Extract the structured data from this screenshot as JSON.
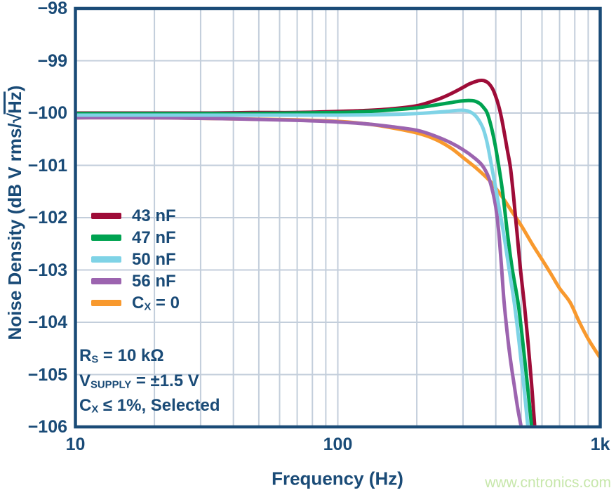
{
  "style": {
    "background": "#ffffff",
    "axis_color": "#1a4b77",
    "grid_color": "#c3cedb",
    "border_color": "#1a4b77",
    "watermark_color": "#c7e7ab"
  },
  "watermark": {
    "text": "www.cntronics.com"
  },
  "chart_data": {
    "type": "line",
    "title": "",
    "xlabel": "Frequency (Hz)",
    "ylabel_text": "Noise Density (dB V rms/√Hz)",
    "ylabel_segments": [
      {
        "t": "Noise Density (dB V rms/"
      },
      {
        "t": "√"
      },
      {
        "t": "Hz",
        "overline": true
      },
      {
        "t": ")"
      }
    ],
    "x_scale": "log",
    "xlim": [
      10,
      1000
    ],
    "ylim": [
      -106,
      -98
    ],
    "grid": true,
    "legend_position": "inside-left",
    "x_ticks": [
      {
        "value": 10,
        "label": "10"
      },
      {
        "value": 100,
        "label": "100"
      },
      {
        "value": 1000,
        "label": "1k"
      }
    ],
    "y_ticks": [
      {
        "value": -98,
        "label": "−98"
      },
      {
        "value": -99,
        "label": "−99"
      },
      {
        "value": -100,
        "label": "−100"
      },
      {
        "value": -101,
        "label": "−101"
      },
      {
        "value": -102,
        "label": "−102"
      },
      {
        "value": -103,
        "label": "−103"
      },
      {
        "value": -104,
        "label": "−104"
      },
      {
        "value": -105,
        "label": "−105"
      },
      {
        "value": -106,
        "label": "−106"
      }
    ],
    "x_gridlines": [
      20,
      30,
      40,
      50,
      60,
      70,
      80,
      90,
      100,
      200,
      300,
      400,
      500,
      600,
      700,
      800,
      900
    ],
    "y_gridlines": [
      -99,
      -100,
      -101,
      -102,
      -103,
      -104,
      -105
    ],
    "draw_order": [
      4,
      3,
      0,
      1,
      2
    ],
    "series": [
      {
        "name": "43 nF",
        "label_segments": [
          {
            "t": "43 nF"
          }
        ],
        "color": "#9e0c38",
        "points": [
          [
            10,
            -100
          ],
          [
            15,
            -100
          ],
          [
            22,
            -100
          ],
          [
            33,
            -100
          ],
          [
            47,
            -99.99
          ],
          [
            68,
            -99.99
          ],
          [
            100,
            -99.97
          ],
          [
            130,
            -99.95
          ],
          [
            160,
            -99.92
          ],
          [
            200,
            -99.86
          ],
          [
            240,
            -99.74
          ],
          [
            270,
            -99.63
          ],
          [
            300,
            -99.51
          ],
          [
            315,
            -99.45
          ],
          [
            330,
            -99.41
          ],
          [
            345,
            -99.38
          ],
          [
            360,
            -99.38
          ],
          [
            375,
            -99.43
          ],
          [
            390,
            -99.55
          ],
          [
            402,
            -99.72
          ],
          [
            412,
            -99.9
          ],
          [
            420,
            -100.08
          ],
          [
            430,
            -100.35
          ],
          [
            443,
            -100.72
          ],
          [
            455,
            -101.05
          ],
          [
            468,
            -101.62
          ],
          [
            482,
            -102.3
          ],
          [
            497,
            -103
          ],
          [
            513,
            -103.62
          ],
          [
            530,
            -104.35
          ],
          [
            547,
            -105.15
          ],
          [
            563,
            -106
          ]
        ]
      },
      {
        "name": "47 nF",
        "label_segments": [
          {
            "t": "47 nF"
          }
        ],
        "color": "#00a351",
        "points": [
          [
            10,
            -100.01
          ],
          [
            15,
            -100.01
          ],
          [
            22,
            -100.01
          ],
          [
            33,
            -100.01
          ],
          [
            47,
            -100.01
          ],
          [
            68,
            -100
          ],
          [
            100,
            -99.99
          ],
          [
            130,
            -99.97
          ],
          [
            160,
            -99.94
          ],
          [
            200,
            -99.9
          ],
          [
            240,
            -99.84
          ],
          [
            270,
            -99.8
          ],
          [
            295,
            -99.77
          ],
          [
            315,
            -99.76
          ],
          [
            332,
            -99.77
          ],
          [
            348,
            -99.82
          ],
          [
            360,
            -99.9
          ],
          [
            371,
            -100
          ],
          [
            385,
            -100.28
          ],
          [
            398,
            -100.62
          ],
          [
            410,
            -101
          ],
          [
            425,
            -101.52
          ],
          [
            443,
            -102.3
          ],
          [
            462,
            -102.98
          ],
          [
            486,
            -103.62
          ],
          [
            505,
            -104.3
          ],
          [
            526,
            -105.12
          ],
          [
            548,
            -106
          ]
        ]
      },
      {
        "name": "50 nF",
        "label_segments": [
          {
            "t": "50 nF"
          }
        ],
        "color": "#7fd3e6",
        "points": [
          [
            10,
            -100.04
          ],
          [
            20,
            -100.04
          ],
          [
            40,
            -100.04
          ],
          [
            70,
            -100.04
          ],
          [
            100,
            -100.04
          ],
          [
            150,
            -100.03
          ],
          [
            200,
            -100.01
          ],
          [
            230,
            -99.99
          ],
          [
            260,
            -99.97
          ],
          [
            285,
            -99.95
          ],
          [
            305,
            -99.95
          ],
          [
            320,
            -99.98
          ],
          [
            333,
            -100.04
          ],
          [
            345,
            -100.14
          ],
          [
            358,
            -100.3
          ],
          [
            370,
            -100.55
          ],
          [
            385,
            -101
          ],
          [
            400,
            -101.45
          ],
          [
            415,
            -101.9
          ],
          [
            430,
            -102.35
          ],
          [
            450,
            -103
          ],
          [
            470,
            -103.62
          ],
          [
            490,
            -104.35
          ],
          [
            510,
            -105.15
          ],
          [
            530,
            -106
          ]
        ]
      },
      {
        "name": "56 nF",
        "label_segments": [
          {
            "t": "56 nF"
          }
        ],
        "color": "#9c64af",
        "points": [
          [
            10,
            -100.09
          ],
          [
            20,
            -100.09
          ],
          [
            40,
            -100.11
          ],
          [
            70,
            -100.14
          ],
          [
            100,
            -100.17
          ],
          [
            130,
            -100.21
          ],
          [
            160,
            -100.26
          ],
          [
            200,
            -100.33
          ],
          [
            235,
            -100.44
          ],
          [
            270,
            -100.57
          ],
          [
            300,
            -100.7
          ],
          [
            330,
            -100.85
          ],
          [
            355,
            -101
          ],
          [
            375,
            -101.22
          ],
          [
            390,
            -101.52
          ],
          [
            400,
            -101.8
          ],
          [
            410,
            -102.25
          ],
          [
            420,
            -102.9
          ],
          [
            430,
            -103.6
          ],
          [
            442,
            -104.2
          ],
          [
            455,
            -104.72
          ],
          [
            470,
            -105.2
          ],
          [
            485,
            -105.65
          ],
          [
            500,
            -106
          ]
        ]
      },
      {
        "name": "Cx = 0",
        "label_segments": [
          {
            "t": "C"
          },
          {
            "t": "X",
            "sub": true
          },
          {
            "t": " = 0"
          }
        ],
        "color": "#f8992e",
        "points": [
          [
            10,
            -100.09
          ],
          [
            20,
            -100.09
          ],
          [
            40,
            -100.11
          ],
          [
            70,
            -100.13
          ],
          [
            100,
            -100.16
          ],
          [
            130,
            -100.21
          ],
          [
            160,
            -100.28
          ],
          [
            200,
            -100.38
          ],
          [
            235,
            -100.5
          ],
          [
            270,
            -100.67
          ],
          [
            300,
            -100.85
          ],
          [
            340,
            -101.07
          ],
          [
            380,
            -101.3
          ],
          [
            420,
            -101.58
          ],
          [
            460,
            -101.88
          ],
          [
            500,
            -102.15
          ],
          [
            550,
            -102.5
          ],
          [
            600,
            -102.8
          ],
          [
            650,
            -103.08
          ],
          [
            700,
            -103.35
          ],
          [
            768,
            -103.62
          ],
          [
            830,
            -103.98
          ],
          [
            900,
            -104.32
          ],
          [
            1000,
            -104.68
          ]
        ]
      }
    ],
    "annotations": [
      {
        "segments": [
          {
            "t": "R"
          },
          {
            "t": "S",
            "sub": true
          },
          {
            "t": " = 10 kΩ"
          }
        ]
      },
      {
        "segments": [
          {
            "t": "V"
          },
          {
            "t": "SUPPLY",
            "sub": true
          },
          {
            "t": " = ±1.5 V"
          }
        ]
      },
      {
        "segments": [
          {
            "t": "C"
          },
          {
            "t": "X",
            "sub": true
          },
          {
            "t": " ≤ 1%, Selected"
          }
        ]
      }
    ]
  }
}
